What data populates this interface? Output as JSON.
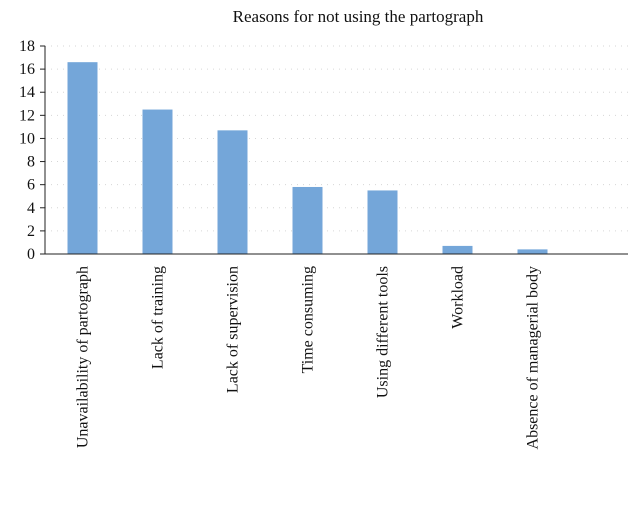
{
  "chart_data": {
    "type": "bar",
    "title": "Reasons for not using the partograph",
    "xlabel": "",
    "ylabel": "",
    "categories": [
      "Unavailability of partograph",
      "Lack of training",
      "Lack of supervision",
      "Time consuming",
      "Using different tools",
      "Workload",
      "Absence of managerial body"
    ],
    "values": [
      16.6,
      12.5,
      10.7,
      5.8,
      5.5,
      0.7,
      0.4
    ],
    "ylim": [
      0,
      18
    ],
    "yticks": [
      "0",
      "2",
      "4",
      "6",
      "8",
      "10",
      "12",
      "14",
      "16",
      "18"
    ],
    "grid": true,
    "legend": "none",
    "colors": {
      "bar": "#74a6d9",
      "axis": "#222222",
      "grid": "#d6d6d6"
    }
  }
}
